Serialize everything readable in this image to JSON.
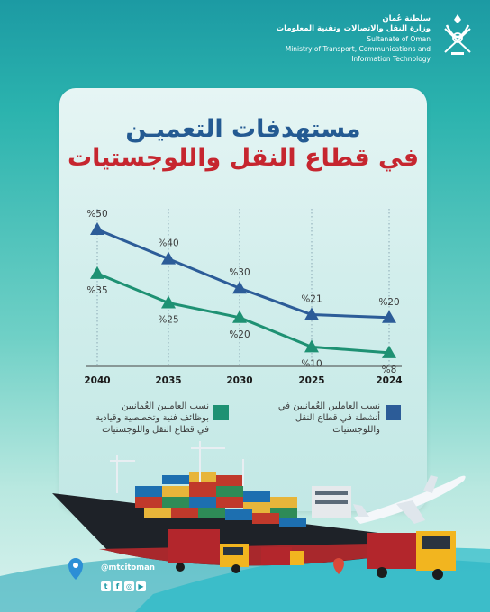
{
  "header": {
    "ministry_ar_1": "سلطنة عُمان",
    "ministry_ar_2": "وزارة النقل والاتصالات وتقنية المعلومات",
    "ministry_en_1": "Sultanate of Oman",
    "ministry_en_2": "Ministry of Transport, Communications and",
    "ministry_en_3": "Information Technology"
  },
  "title": {
    "line1": "مستهدفات التعميـن",
    "line2": "في قطاع النقل واللوجستيات"
  },
  "chart_data": {
    "type": "line",
    "categories": [
      "2040",
      "2035",
      "2030",
      "2025",
      "2024"
    ],
    "series": [
      {
        "name": "نسب العاملين العُمانيين في أنشطة في قطاع النقل واللوجستيات",
        "values": [
          50,
          40,
          30,
          21,
          20
        ],
        "labels": [
          "%50",
          "%40",
          "%30",
          "%21",
          "%20"
        ],
        "color": "#2c5c98"
      },
      {
        "name": "نسب العاملين العُمانيين بوظائف فنية وتخصصية وقيادية في قطاع النقل واللوجستيات",
        "values": [
          35,
          25,
          20,
          10,
          8
        ],
        "labels": [
          "%35",
          "%25",
          "%20",
          "%10",
          "%8"
        ],
        "color": "#1e9173"
      }
    ],
    "ylim": [
      0,
      60
    ],
    "grid": false,
    "legend_position": "bottom"
  },
  "legend": {
    "blue_text": "نسب العاملين العُمانيين في أنشطة في قطاع النقل واللوجستيات",
    "green_text": "نسب العاملين العُمانيين بوظائف فنية وتخصصية وقيادية في قطاع النقل واللوجستيات"
  },
  "footer": {
    "handle": "@mtcitoman",
    "social_icons": [
      "twitter-icon",
      "facebook-icon",
      "instagram-icon",
      "youtube-icon"
    ]
  },
  "colors": {
    "title_blue": "#245a92",
    "title_red": "#c6262f",
    "series_blue": "#2c5c98",
    "series_green": "#1e9173"
  }
}
